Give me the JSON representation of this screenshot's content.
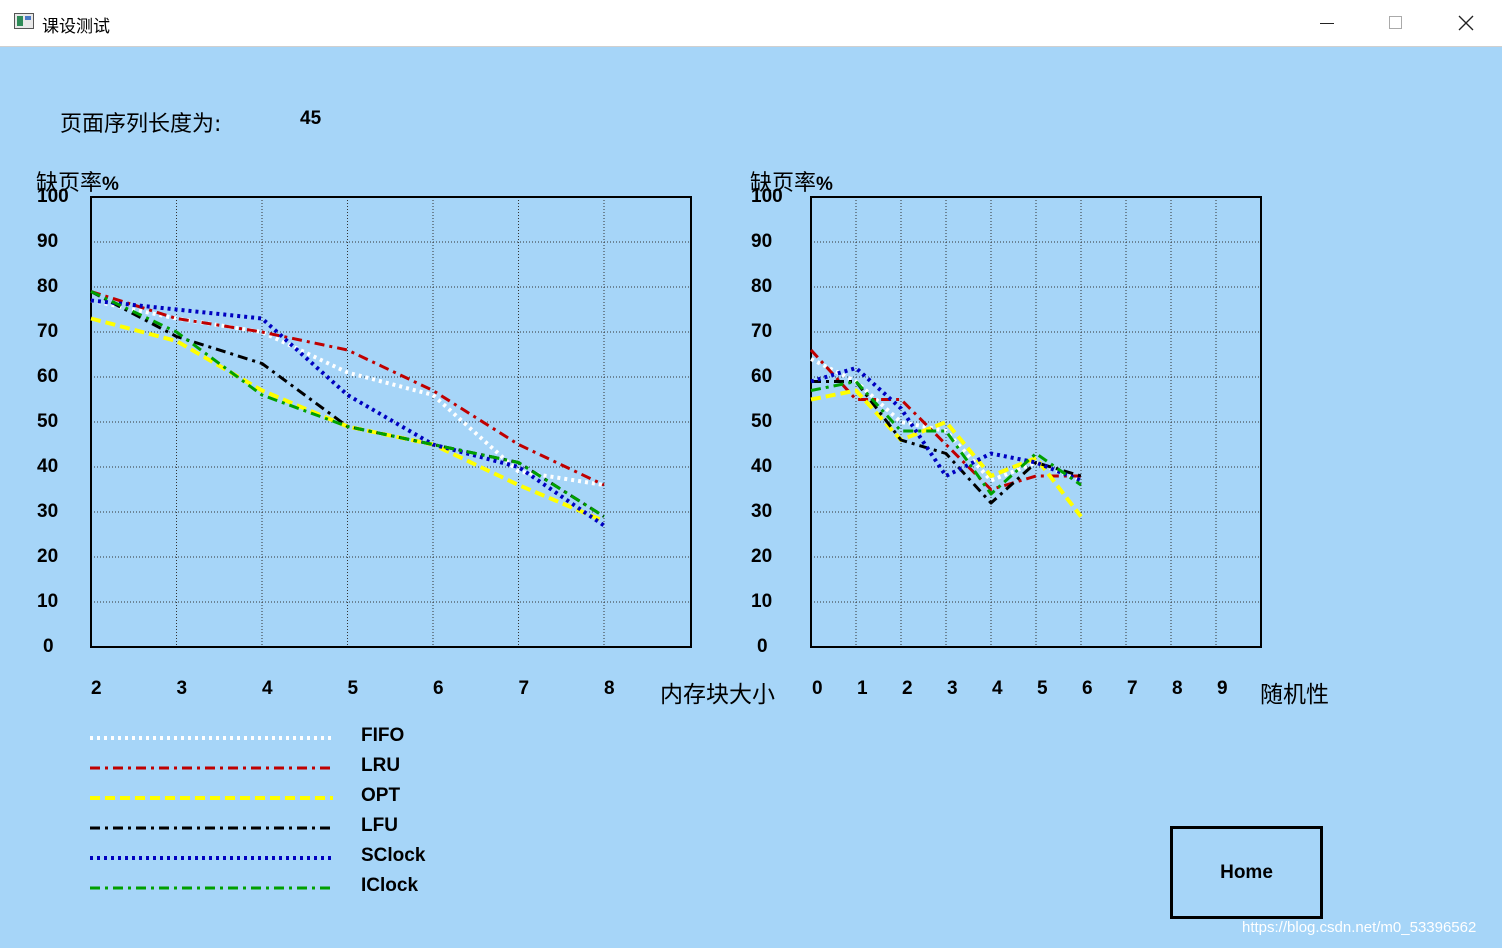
{
  "window": {
    "title": "课设测试"
  },
  "sequence": {
    "label": "页面序列长度为:",
    "value": "45"
  },
  "legend": [
    {
      "name": "FIFO",
      "color": "#ffffff",
      "style": "dotted"
    },
    {
      "name": "LRU",
      "color": "#c00000",
      "style": "dashdot"
    },
    {
      "name": "OPT",
      "color": "#ffff00",
      "style": "dashed"
    },
    {
      "name": "LFU",
      "color": "#000000",
      "style": "dashdot"
    },
    {
      "name": "SClock",
      "color": "#0000c0",
      "style": "dotted"
    },
    {
      "name": "IClock",
      "color": "#00a000",
      "style": "dashdot"
    }
  ],
  "home_button": {
    "label": "Home"
  },
  "watermark": "https://blog.csdn.net/m0_53396562",
  "chart_data": [
    {
      "type": "line",
      "ylabel_text": "缺页率",
      "ylabel_unit": "%",
      "xlabel": "内存块大小",
      "ylim": [
        0,
        100
      ],
      "yticks": [
        "100",
        "90",
        "80",
        "70",
        "60",
        "50",
        "40",
        "30",
        "20",
        "10",
        "0"
      ],
      "xticks": [
        "2",
        "3",
        "4",
        "5",
        "6",
        "7",
        "8"
      ],
      "x": [
        2,
        3,
        4,
        5,
        6,
        7,
        8
      ],
      "grid": true,
      "series": [
        {
          "name": "FIFO",
          "values": [
            77,
            73,
            70,
            61,
            56,
            39,
            36
          ]
        },
        {
          "name": "LRU",
          "values": [
            79,
            73,
            70,
            66,
            57,
            45,
            36
          ]
        },
        {
          "name": "OPT",
          "values": [
            73,
            68,
            57,
            49,
            45,
            36,
            28
          ]
        },
        {
          "name": "LFU",
          "values": [
            79,
            69,
            63,
            49,
            45,
            41,
            29
          ]
        },
        {
          "name": "SClock",
          "values": [
            77,
            75,
            73,
            56,
            45,
            40,
            27
          ]
        },
        {
          "name": "IClock",
          "values": [
            79,
            70,
            56,
            49,
            45,
            41,
            29
          ]
        }
      ]
    },
    {
      "type": "line",
      "ylabel_text": "缺页率",
      "ylabel_unit": "%",
      "xlabel": "随机性",
      "ylim": [
        0,
        100
      ],
      "yticks": [
        "100",
        "90",
        "80",
        "70",
        "60",
        "50",
        "40",
        "30",
        "20",
        "10",
        "0"
      ],
      "xticks": [
        "0",
        "1",
        "2",
        "3",
        "4",
        "5",
        "6",
        "7",
        "8",
        "9"
      ],
      "x": [
        0,
        1,
        2,
        3,
        4,
        5,
        6
      ],
      "grid": true,
      "series": [
        {
          "name": "FIFO",
          "values": [
            64,
            59,
            50,
            48,
            37,
            41,
            37
          ]
        },
        {
          "name": "LRU",
          "values": [
            66,
            55,
            55,
            45,
            35,
            38,
            38
          ]
        },
        {
          "name": "OPT",
          "values": [
            55,
            57,
            46,
            50,
            38,
            42,
            29
          ]
        },
        {
          "name": "LFU",
          "values": [
            59,
            59,
            46,
            43,
            32,
            41,
            38
          ]
        },
        {
          "name": "SClock",
          "values": [
            59,
            62,
            53,
            38,
            43,
            41,
            37
          ]
        },
        {
          "name": "IClock",
          "values": [
            57,
            59,
            48,
            48,
            34,
            43,
            36
          ]
        }
      ]
    }
  ]
}
